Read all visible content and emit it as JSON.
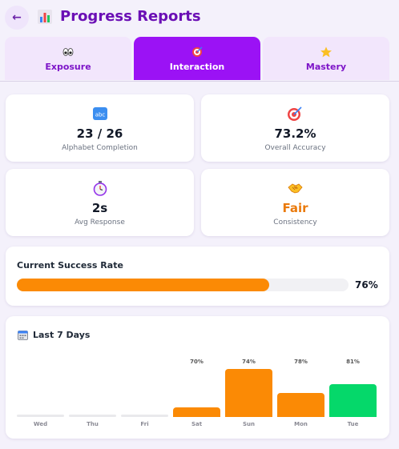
{
  "header": {
    "back_label": "←",
    "title": "Progress Reports",
    "title_icon": "bar-chart-icon"
  },
  "tabs": [
    {
      "label": "Exposure",
      "icon": "eyes-icon",
      "active": false
    },
    {
      "label": "Interaction",
      "icon": "target-icon",
      "active": true
    },
    {
      "label": "Mastery",
      "icon": "star-icon",
      "active": false
    }
  ],
  "stats": [
    {
      "value": "23 / 26",
      "label": "Alphabet Completion",
      "icon": "abc-icon"
    },
    {
      "value": "73.2%",
      "label": "Overall Accuracy",
      "icon": "target-icon"
    },
    {
      "value": "2s",
      "label": "Avg Response",
      "icon": "stopwatch-icon"
    },
    {
      "value": "Fair",
      "label": "Consistency",
      "icon": "handshake-icon"
    }
  ],
  "success_rate": {
    "title": "Current Success Rate",
    "percent_label": "76%",
    "fraction": 0.76,
    "color": "#fb8a05"
  },
  "last7": {
    "title": "Last 7 Days",
    "icon": "calendar-icon",
    "days": [
      {
        "day": "Wed",
        "pct_label": "",
        "value": 0,
        "color": "#e9e9ec"
      },
      {
        "day": "Thu",
        "pct_label": "",
        "value": 0,
        "color": "#e9e9ec"
      },
      {
        "day": "Fri",
        "pct_label": "",
        "value": 0,
        "color": "#e9e9ec"
      },
      {
        "day": "Sat",
        "pct_label": "70%",
        "value": 70,
        "color": "#fb8a05"
      },
      {
        "day": "Sun",
        "pct_label": "74%",
        "value": 74,
        "color": "#fb8a05"
      },
      {
        "day": "Mon",
        "pct_label": "78%",
        "value": 78,
        "color": "#fb8a05"
      },
      {
        "day": "Tue",
        "pct_label": "81%",
        "value": 81,
        "color": "#05d86a"
      }
    ]
  }
}
